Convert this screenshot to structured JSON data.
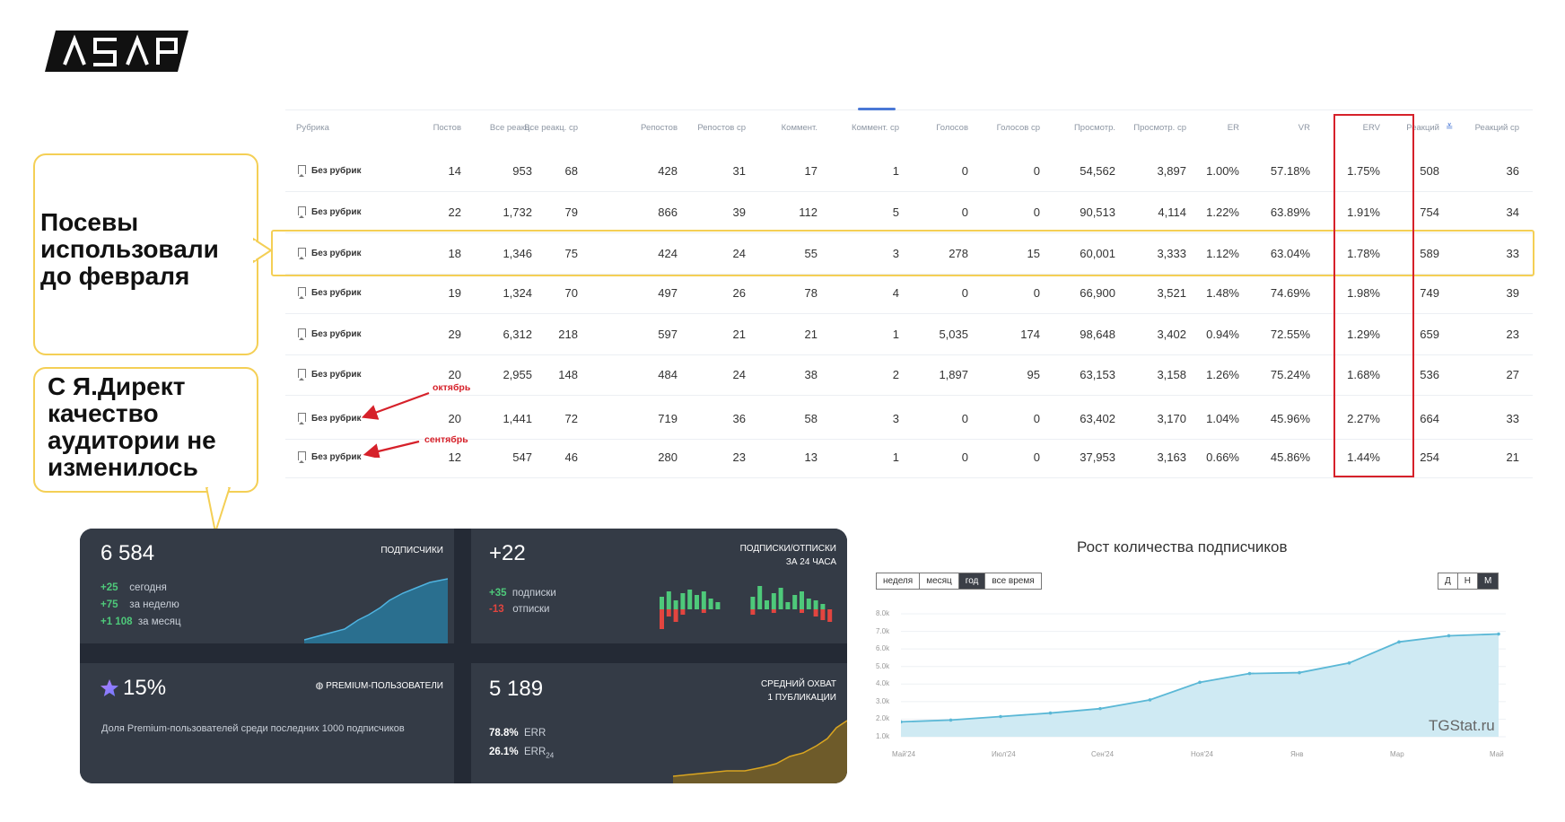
{
  "logo": {
    "text": "ASAP"
  },
  "table": {
    "headers": [
      "Рубрика",
      "Постов",
      "Все реакц.",
      "Все реакц. ср",
      "Репостов",
      "Репостов ср",
      "Коммент.",
      "Коммент. ср",
      "Голосов",
      "Голосов ср",
      "Просмотр.",
      "Просмотр. ср",
      "ER",
      "VR",
      "ERV",
      "Реакций",
      "Реакций ср"
    ],
    "rows": [
      [
        "Без рубрик",
        "14",
        "953",
        "68",
        "428",
        "31",
        "17",
        "1",
        "0",
        "0",
        "54,562",
        "3,897",
        "1.00%",
        "57.18%",
        "1.75%",
        "508",
        "36"
      ],
      [
        "Без рубрик",
        "22",
        "1,732",
        "79",
        "866",
        "39",
        "112",
        "5",
        "0",
        "0",
        "90,513",
        "4,114",
        "1.22%",
        "63.89%",
        "1.91%",
        "754",
        "34"
      ],
      [
        "Без рубрик",
        "18",
        "1,346",
        "75",
        "424",
        "24",
        "55",
        "3",
        "278",
        "15",
        "60,001",
        "3,333",
        "1.12%",
        "63.04%",
        "1.78%",
        "589",
        "33"
      ],
      [
        "Без рубрик",
        "19",
        "1,324",
        "70",
        "497",
        "26",
        "78",
        "4",
        "0",
        "0",
        "66,900",
        "3,521",
        "1.48%",
        "74.69%",
        "1.98%",
        "749",
        "39"
      ],
      [
        "Без рубрик",
        "29",
        "6,312",
        "218",
        "597",
        "21",
        "21",
        "1",
        "5,035",
        "174",
        "98,648",
        "3,402",
        "0.94%",
        "72.55%",
        "1.29%",
        "659",
        "23"
      ],
      [
        "Без рубрик",
        "20",
        "2,955",
        "148",
        "484",
        "24",
        "38",
        "2",
        "1,897",
        "95",
        "63,153",
        "3,158",
        "1.26%",
        "75.24%",
        "1.68%",
        "536",
        "27"
      ],
      [
        "Без рубрик",
        "20",
        "1,441",
        "72",
        "719",
        "36",
        "58",
        "3",
        "0",
        "0",
        "63,402",
        "3,170",
        "1.04%",
        "45.96%",
        "2.27%",
        "664",
        "33"
      ],
      [
        "Без рубрик",
        "12",
        "547",
        "46",
        "280",
        "23",
        "13",
        "1",
        "0",
        "0",
        "37,953",
        "3,163",
        "0.66%",
        "45.86%",
        "1.44%",
        "254",
        "21"
      ]
    ]
  },
  "callouts": {
    "first": "Посевы использовали до февраля",
    "second": "С Я.Директ качество аудитории не изменилось"
  },
  "notes": {
    "october": "октябрь",
    "september": "сентябрь"
  },
  "dashboard": {
    "subs": {
      "value": "6 584",
      "label": "ПОДПИСЧИКИ",
      "stats": [
        {
          "delta": "+25",
          "text": "сегодня"
        },
        {
          "delta": "+75",
          "text": "за неделю"
        },
        {
          "delta": "+1 108",
          "text": "за месяц"
        }
      ]
    },
    "flow": {
      "value": "+22",
      "label1": "ПОДПИСКИ/ОТПИСКИ",
      "label2": "ЗА 24 ЧАСА",
      "in": {
        "delta": "+35",
        "text": "подписки"
      },
      "out": {
        "delta": "-13",
        "text": "отписки"
      }
    },
    "premium": {
      "value": "15%",
      "label": "PREMIUM-ПОЛЬЗОВАТЕЛИ",
      "desc": "Доля Premium-пользователей среди последних 1000 подписчиков"
    },
    "reach": {
      "value": "5 189",
      "label1": "СРЕДНИЙ ОХВАТ",
      "label2": "1 ПУБЛИКАЦИИ",
      "err": {
        "value": "78.8%",
        "text": "ERR"
      },
      "err24": {
        "value": "26.1%",
        "text": "ERR",
        "sub": "24"
      }
    }
  },
  "growth_chart": {
    "title": "Рост количества подписчиков",
    "ranges": [
      "неделя",
      "месяц",
      "год",
      "все время"
    ],
    "active_range": "год",
    "granularity": [
      "Д",
      "Н",
      "М"
    ],
    "active_granularity": "М",
    "watermark": "TGStat.ru"
  },
  "chart_data": {
    "type": "area",
    "x": [
      "Май'24",
      "Июн'24",
      "Июл'24",
      "Авг'24",
      "Сен'24",
      "Окт'24",
      "Ноя'24",
      "Дек'24",
      "Янв",
      "Фев",
      "Мар",
      "Апр",
      "Май"
    ],
    "xticks": [
      "Май'24",
      "Июл'24",
      "Сен'24",
      "Ноя'24",
      "Янв",
      "Мар",
      "Май"
    ],
    "values": [
      1.85,
      1.95,
      2.15,
      2.35,
      2.6,
      3.1,
      4.1,
      4.6,
      4.65,
      5.2,
      6.4,
      6.75,
      6.85
    ],
    "yticks": [
      "1.0k",
      "2.0k",
      "3.0k",
      "4.0k",
      "5.0k",
      "6.0k",
      "7.0k",
      "8.0k"
    ],
    "ylim": [
      1.0,
      8.0
    ],
    "title": "Рост количества подписчиков",
    "color": "#5bb8d6"
  }
}
